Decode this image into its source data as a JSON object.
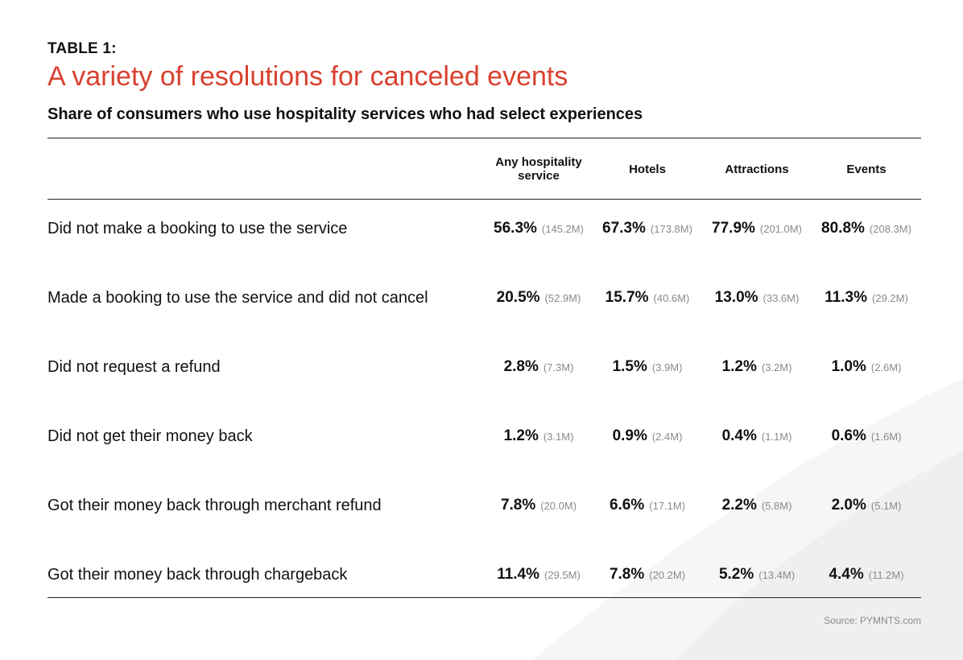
{
  "chart_data": {
    "type": "table",
    "label": "TABLE 1:",
    "title": "A variety of resolutions for canceled events",
    "subtitle": "Share of consumers who use hospitality services who had select experiences",
    "columns": [
      "Any hospitality service",
      "Hotels",
      "Attractions",
      "Events"
    ],
    "rows": [
      {
        "label": "Did not make a booking to use the service",
        "cells": [
          {
            "pct": "56.3%",
            "count": "(145.2M)"
          },
          {
            "pct": "67.3%",
            "count": "(173.8M)"
          },
          {
            "pct": "77.9%",
            "count": "(201.0M)"
          },
          {
            "pct": "80.8%",
            "count": "(208.3M)"
          }
        ]
      },
      {
        "label": "Made a booking to use the service and did not cancel",
        "cells": [
          {
            "pct": "20.5%",
            "count": "(52.9M)"
          },
          {
            "pct": "15.7%",
            "count": "(40.6M)"
          },
          {
            "pct": "13.0%",
            "count": "(33.6M)"
          },
          {
            "pct": "11.3%",
            "count": "(29.2M)"
          }
        ]
      },
      {
        "label": "Did not request a refund",
        "cells": [
          {
            "pct": "2.8%",
            "count": "(7.3M)"
          },
          {
            "pct": "1.5%",
            "count": "(3.9M)"
          },
          {
            "pct": "1.2%",
            "count": "(3.2M)"
          },
          {
            "pct": "1.0%",
            "count": "(2.6M)"
          }
        ]
      },
      {
        "label": "Did not get their money back",
        "cells": [
          {
            "pct": "1.2%",
            "count": "(3.1M)"
          },
          {
            "pct": "0.9%",
            "count": "(2.4M)"
          },
          {
            "pct": "0.4%",
            "count": "(1.1M)"
          },
          {
            "pct": "0.6%",
            "count": "(1.6M)"
          }
        ]
      },
      {
        "label": "Got their money back through merchant refund",
        "cells": [
          {
            "pct": "7.8%",
            "count": "(20.0M)"
          },
          {
            "pct": "6.6%",
            "count": "(17.1M)"
          },
          {
            "pct": "2.2%",
            "count": "(5.8M)"
          },
          {
            "pct": "2.0%",
            "count": "(5.1M)"
          }
        ]
      },
      {
        "label": "Got their money back through chargeback",
        "cells": [
          {
            "pct": "11.4%",
            "count": "(29.5M)"
          },
          {
            "pct": "7.8%",
            "count": "(20.2M)"
          },
          {
            "pct": "5.2%",
            "count": "(13.4M)"
          },
          {
            "pct": "4.4%",
            "count": "(11.2M)"
          }
        ]
      }
    ],
    "source": "Source: PYMNTS.com"
  },
  "colors": {
    "title_red": "#d9402f",
    "text": "#111111",
    "muted": "#8a8a8a",
    "rule": "#222222"
  }
}
